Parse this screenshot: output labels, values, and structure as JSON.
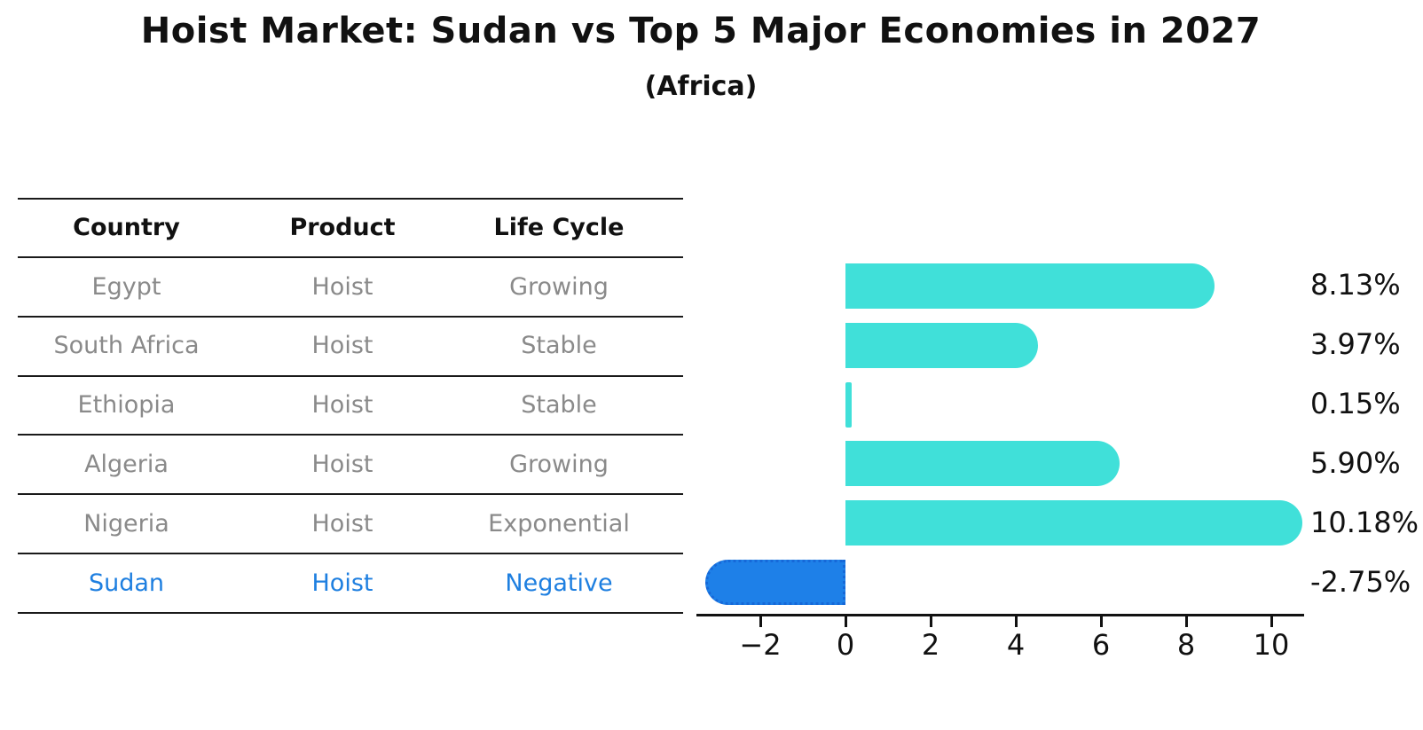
{
  "title": "Hoist Market: Sudan vs Top 5 Major Economies in 2027",
  "subtitle": "(Africa)",
  "table": {
    "headers": [
      "Country",
      "Product",
      "Life Cycle"
    ],
    "rows": [
      {
        "country": "Egypt",
        "product": "Hoist",
        "life_cycle": "Growing",
        "highlight": false
      },
      {
        "country": "South Africa",
        "product": "Hoist",
        "life_cycle": "Stable",
        "highlight": false
      },
      {
        "country": "Ethiopia",
        "product": "Hoist",
        "life_cycle": "Stable",
        "highlight": false
      },
      {
        "country": "Algeria",
        "product": "Hoist",
        "life_cycle": "Growing",
        "highlight": false
      },
      {
        "country": "Nigeria",
        "product": "Hoist",
        "life_cycle": "Exponential",
        "highlight": false
      },
      {
        "country": "Sudan",
        "product": "Hoist",
        "life_cycle": "Negative",
        "highlight": true
      }
    ]
  },
  "chart_data": {
    "type": "bar",
    "orientation": "horizontal",
    "title": "Hoist Market: Sudan vs Top 5 Major Economies in 2027",
    "subtitle": "(Africa)",
    "categories": [
      "Egypt",
      "South Africa",
      "Ethiopia",
      "Algeria",
      "Nigeria",
      "Sudan"
    ],
    "values": [
      8.13,
      3.97,
      0.15,
      5.9,
      10.18,
      -2.75
    ],
    "value_labels": [
      "8.13%",
      "3.97%",
      "0.15%",
      "5.90%",
      "10.18%",
      "-2.75%"
    ],
    "x_ticks": [
      -2,
      0,
      2,
      4,
      6,
      8,
      10
    ],
    "x_tick_labels": [
      "−2",
      "0",
      "2",
      "4",
      "6",
      "8",
      "10"
    ],
    "xlim": [
      -3.5,
      10.8
    ],
    "grid": false,
    "legend": false,
    "bar_color": "#40e0d9",
    "highlight_bar_color": "#1e80e8",
    "highlight_index": 5
  },
  "colors": {
    "bar_cyan": "#40e0d9",
    "bar_blue": "#1e80e8",
    "bar_blue_border": "#1668d8",
    "row_text": "#8a8a8a",
    "highlight_text": "#1e7fe0",
    "axis_text": "#111111"
  }
}
